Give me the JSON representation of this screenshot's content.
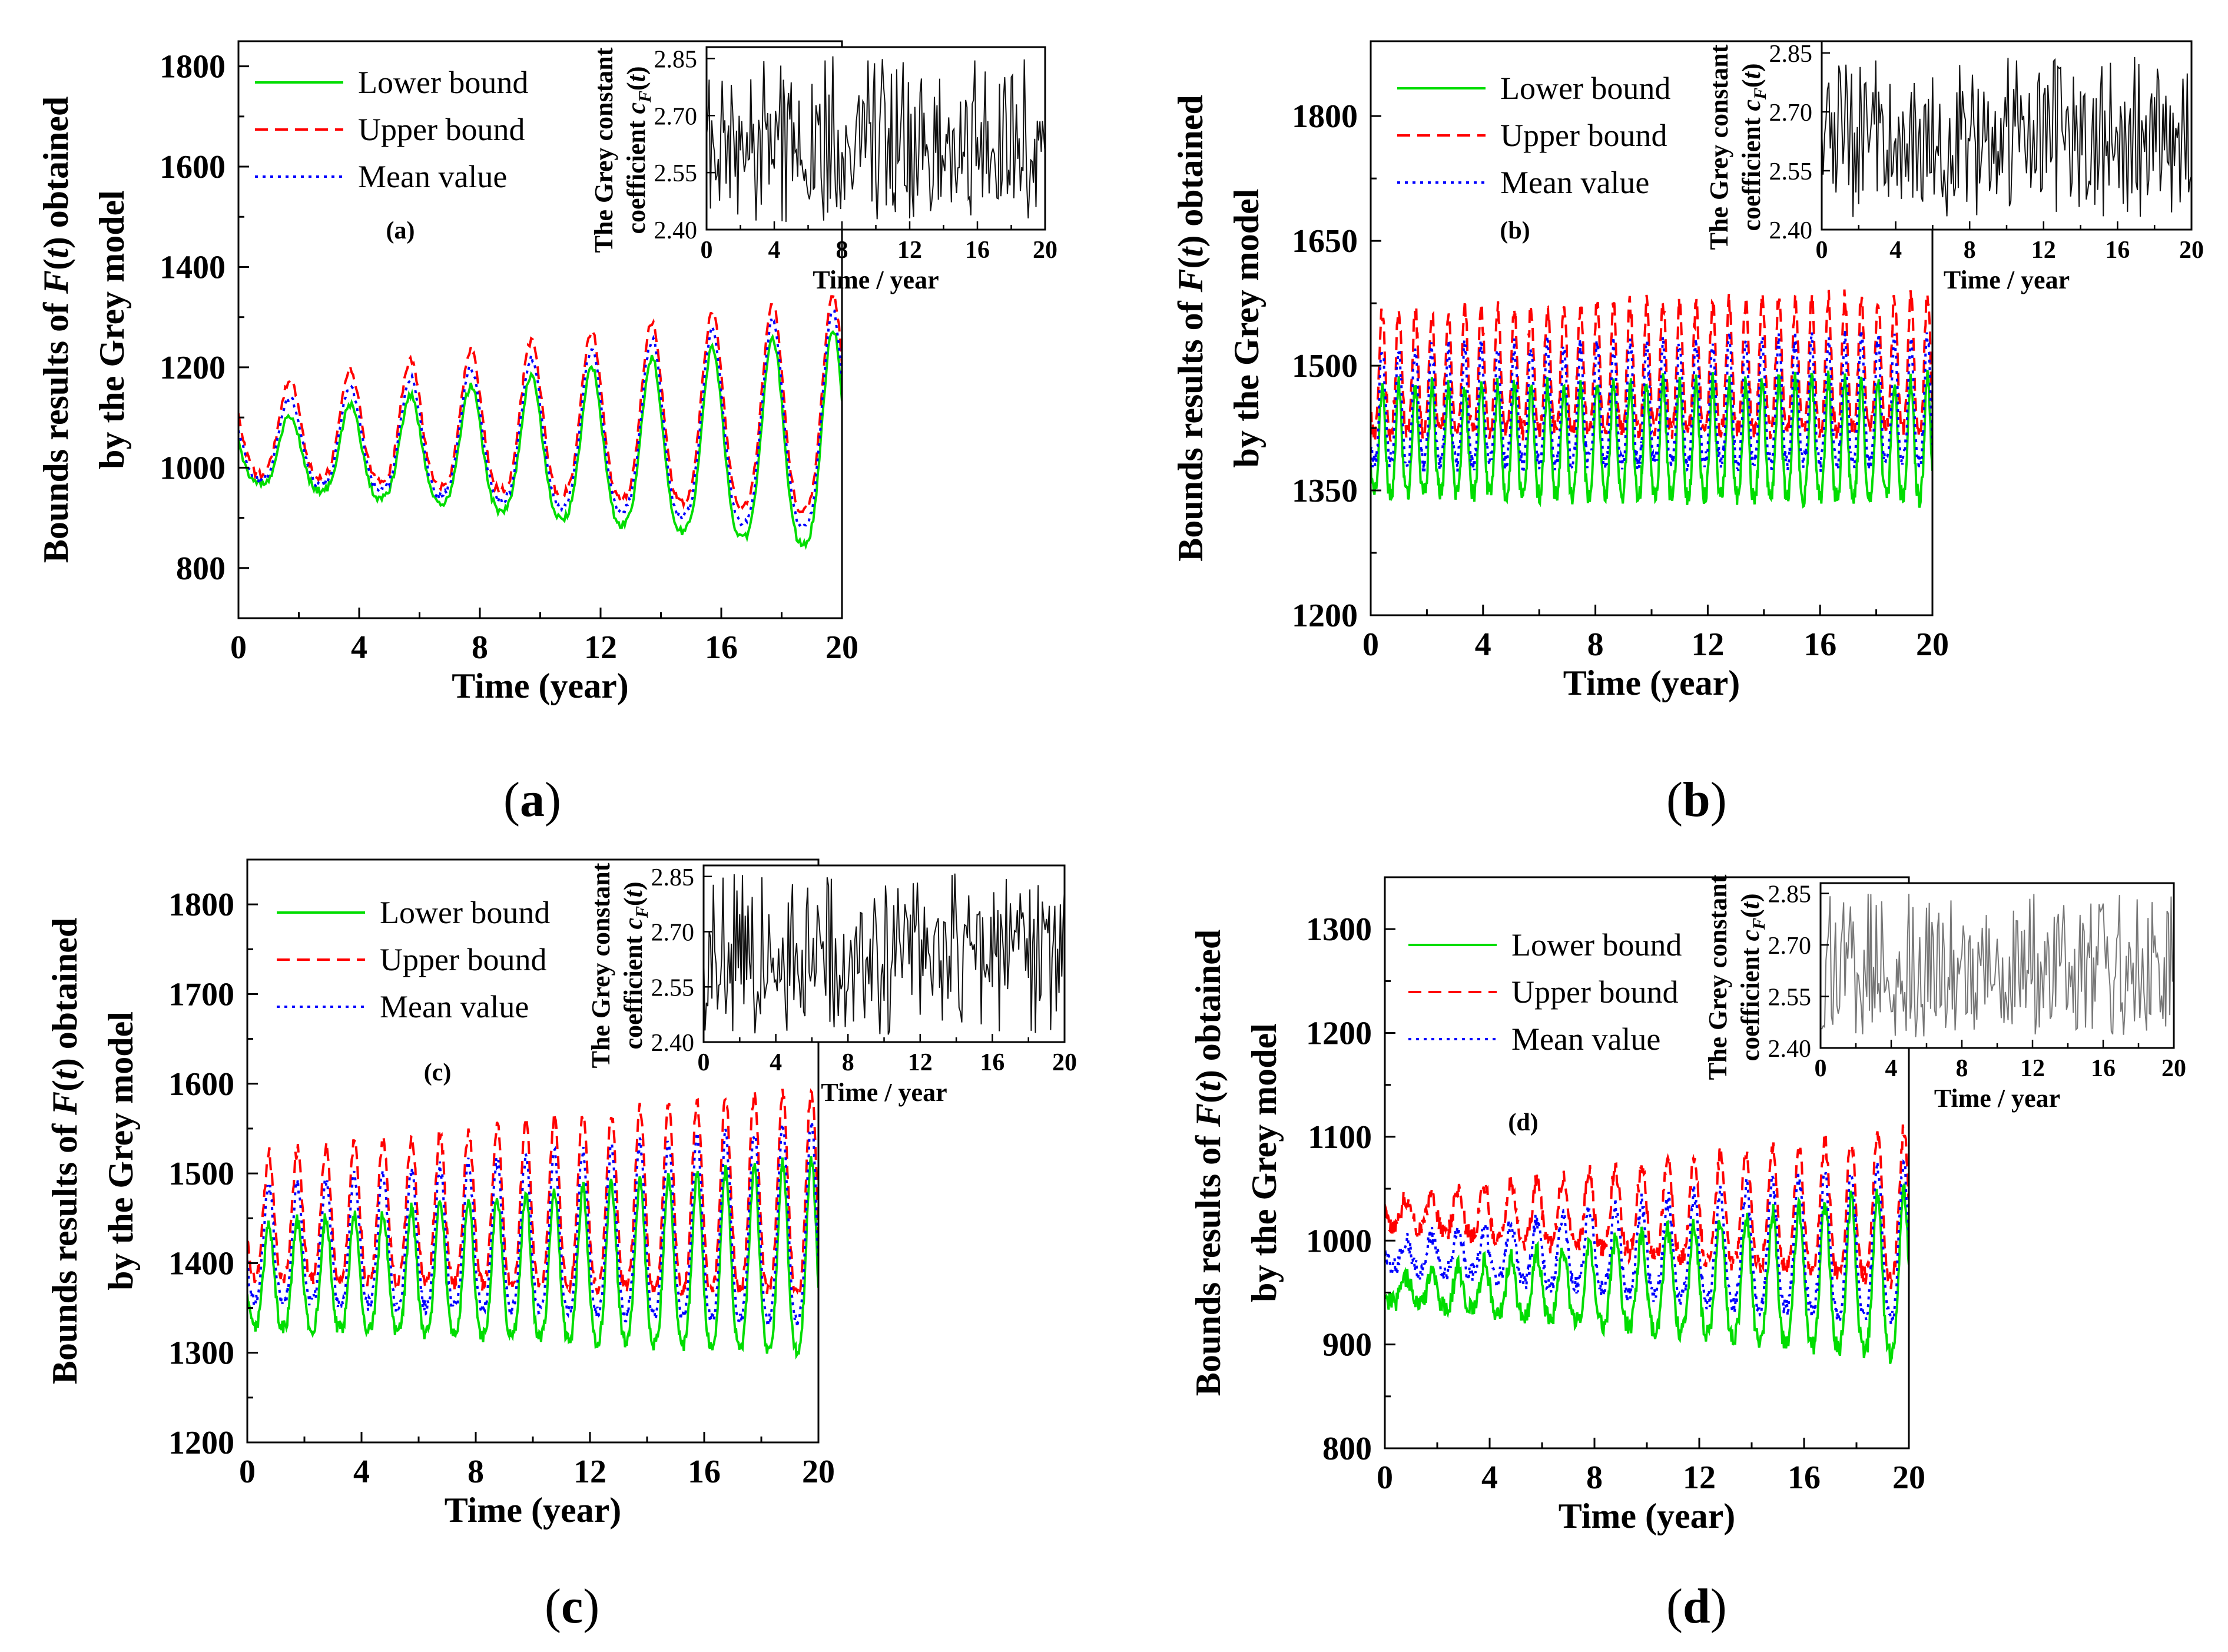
{
  "figure": {
    "captions": [
      {
        "open": "(",
        "letter": "a",
        "close": ")"
      },
      {
        "open": "(",
        "letter": "b",
        "close": ")"
      },
      {
        "open": "(",
        "letter": "c",
        "close": ")"
      },
      {
        "open": "(",
        "letter": "d",
        "close": ")"
      }
    ]
  },
  "chart_data": [
    {
      "type": "line",
      "panel": "a",
      "panel_label": "(a)",
      "xlabel": "Time (year)",
      "ylabel_line1_pre": "Bounds results of ",
      "ylabel_line1_F": "F",
      "ylabel_line1_paren_open": "(",
      "ylabel_line1_t": "t",
      "ylabel_line1_post": ") obtained",
      "ylabel_line2": "by the Grey model",
      "xlim": [
        0,
        20
      ],
      "ylim": [
        700,
        1850
      ],
      "xticks": [
        "0",
        "4",
        "8",
        "12",
        "16",
        "20"
      ],
      "yticks": [
        "800",
        "1000",
        "1200",
        "1400",
        "1600",
        "1800"
      ],
      "ytick_values": [
        800,
        1000,
        1200,
        1400,
        1600,
        1800
      ],
      "legend": [
        "Lower bound",
        "Upper bound",
        "Mean value"
      ],
      "legend_position": "top-left",
      "series_model": {
        "cycles_per_year": 0.5,
        "samples": 400,
        "lower": {
          "start_center": 1020,
          "end_center": 1020,
          "start_amp": 70,
          "end_amp": 260,
          "phase": 0.15,
          "noise": 8
        },
        "upper": {
          "start_center": 1060,
          "end_center": 1090,
          "start_amp": 100,
          "end_amp": 260,
          "phase": 0.15,
          "noise": 8
        },
        "mean": {
          "start_center": 1040,
          "end_center": 1055,
          "start_amp": 85,
          "end_amp": 260,
          "phase": 0.15,
          "noise": 8
        }
      },
      "inset": {
        "ylabel_line1": "The Grey constant",
        "ylabel_line2_pre": "coefficient ",
        "ylabel_line2_c": "c",
        "ylabel_line2_sub": "F",
        "ylabel_line2_paren_open": "(",
        "ylabel_line2_t": "t",
        "ylabel_line2_close": ")",
        "xlabel": "Time / year",
        "xlim": [
          0,
          20
        ],
        "ylim": [
          2.4,
          2.88
        ],
        "xticks": [
          "0",
          "4",
          "8",
          "12",
          "16",
          "20"
        ],
        "yticks": [
          "2.40",
          "2.55",
          "2.70",
          "2.85"
        ],
        "ytick_values": [
          2.4,
          2.55,
          2.7,
          2.85
        ],
        "samples": 260,
        "value_range": [
          2.42,
          2.86
        ],
        "seed": 11
      }
    },
    {
      "type": "line",
      "panel": "b",
      "panel_label": "(b)",
      "xlabel": "Time (year)",
      "ylabel_line1_pre": "Bounds results of ",
      "ylabel_line1_F": "F",
      "ylabel_line1_paren_open": "(",
      "ylabel_line1_t": "t",
      "ylabel_line1_post": ") obtained",
      "ylabel_line2": "by the Grey model",
      "xlim": [
        0,
        20
      ],
      "ylim": [
        1200,
        1890
      ],
      "xticks": [
        "0",
        "4",
        "8",
        "12",
        "16",
        "20"
      ],
      "yticks": [
        "1200",
        "1350",
        "1500",
        "1650",
        "1800"
      ],
      "ytick_values": [
        1200,
        1350,
        1500,
        1650,
        1800
      ],
      "legend": [
        "Lower bound",
        "Upper bound",
        "Mean value"
      ],
      "legend_position": "top-left",
      "series_model": {
        "cycles_per_year": 1.7,
        "samples": 900,
        "lower": {
          "start_center": 1400,
          "end_center": 1400,
          "start_amp": 75,
          "end_amp": 85,
          "phase": 0.3,
          "noise": 12
        },
        "upper": {
          "start_center": 1480,
          "end_center": 1490,
          "start_amp": 85,
          "end_amp": 95,
          "phase": 0.3,
          "noise": 12
        },
        "mean": {
          "start_center": 1440,
          "end_center": 1445,
          "start_amp": 80,
          "end_amp": 90,
          "phase": 0.3,
          "noise": 12
        }
      },
      "inset": {
        "ylabel_line1": "The Grey constant",
        "ylabel_line2_pre": "coefficient ",
        "ylabel_line2_c": "c",
        "ylabel_line2_sub": "F",
        "ylabel_line2_paren_open": "(",
        "ylabel_line2_t": "t",
        "ylabel_line2_close": ")",
        "xlabel": "Time / year",
        "xlim": [
          0,
          20
        ],
        "ylim": [
          2.4,
          2.88
        ],
        "xticks": [
          "0",
          "4",
          "8",
          "12",
          "16",
          "20"
        ],
        "yticks": [
          "2.40",
          "2.55",
          "2.70",
          "2.85"
        ],
        "ytick_values": [
          2.4,
          2.55,
          2.7,
          2.85
        ],
        "samples": 260,
        "value_range": [
          2.43,
          2.84
        ],
        "seed": 23
      }
    },
    {
      "type": "line",
      "panel": "c",
      "panel_label": "(c)",
      "xlabel": "Time (year)",
      "ylabel_line1_pre": "Bounds results of ",
      "ylabel_line1_F": "F",
      "ylabel_line1_paren_open": "(",
      "ylabel_line1_t": "t",
      "ylabel_line1_post": ") obtained",
      "ylabel_line2": "by the Grey model",
      "xlim": [
        0,
        20
      ],
      "ylim": [
        1200,
        1850
      ],
      "xticks": [
        "0",
        "4",
        "8",
        "12",
        "16",
        "20"
      ],
      "yticks": [
        "1200",
        "1300",
        "1400",
        "1500",
        "1600",
        "1700",
        "1800"
      ],
      "ytick_values": [
        1200,
        1300,
        1400,
        1500,
        1600,
        1700,
        1800
      ],
      "legend": [
        "Lower bound",
        "Upper bound",
        "Mean value"
      ],
      "legend_position": "top-left",
      "series_model": {
        "cycles_per_year": 1.0,
        "samples": 700,
        "lower": {
          "start_center": 1375,
          "end_center": 1390,
          "start_amp": 65,
          "end_amp": 125,
          "phase": 0.25,
          "noise": 8
        },
        "upper": {
          "start_center": 1440,
          "end_center": 1460,
          "start_amp": 80,
          "end_amp": 135,
          "phase": 0.25,
          "noise": 8
        },
        "mean": {
          "start_center": 1410,
          "end_center": 1425,
          "start_amp": 72,
          "end_amp": 130,
          "phase": 0.25,
          "noise": 8
        }
      },
      "inset": {
        "ylabel_line1": "The Grey constant",
        "ylabel_line2_pre": "coefficient ",
        "ylabel_line2_c": "c",
        "ylabel_line2_sub": "F",
        "ylabel_line2_paren_open": "(",
        "ylabel_line2_t": "t",
        "ylabel_line2_close": ")",
        "xlabel": "Time / year",
        "xlim": [
          0,
          20
        ],
        "ylim": [
          2.4,
          2.88
        ],
        "xticks": [
          "0",
          "4",
          "8",
          "12",
          "16",
          "20"
        ],
        "yticks": [
          "2.40",
          "2.55",
          "2.70",
          "2.85"
        ],
        "ytick_values": [
          2.4,
          2.55,
          2.7,
          2.85
        ],
        "samples": 260,
        "value_range": [
          2.42,
          2.86
        ],
        "seed": 37
      }
    },
    {
      "type": "line",
      "panel": "d",
      "panel_label": "(d)",
      "xlabel": "Time (year)",
      "ylabel_line1_pre": "Bounds results of ",
      "ylabel_line1_F": "F",
      "ylabel_line1_paren_open": "(",
      "ylabel_line1_t": "t",
      "ylabel_line1_post": ") obtained",
      "ylabel_line2": "by the Grey model",
      "xlim": [
        0,
        20
      ],
      "ylim": [
        800,
        1350
      ],
      "xticks": [
        "0",
        "4",
        "8",
        "12",
        "16",
        "20"
      ],
      "yticks": [
        "800",
        "900",
        "1000",
        "1100",
        "1200",
        "1300"
      ],
      "ytick_values": [
        800,
        900,
        1000,
        1100,
        1200,
        1300
      ],
      "legend": [
        "Lower bound",
        "Upper bound",
        "Mean value"
      ],
      "legend_position": "top-left",
      "series_model": {
        "cycles_per_year": 1.0,
        "samples": 700,
        "lower": {
          "start_center": 950,
          "end_center": 955,
          "start_amp": 12,
          "end_amp": 95,
          "phase": 0.2,
          "noise": 10
        },
        "upper": {
          "start_center": 1025,
          "end_center": 1020,
          "start_amp": 15,
          "end_amp": 85,
          "phase": 0.2,
          "noise": 10
        },
        "mean": {
          "start_center": 985,
          "end_center": 985,
          "start_amp": 13,
          "end_amp": 90,
          "phase": 0.2,
          "noise": 10
        }
      },
      "inset": {
        "ylabel_line1": "The Grey constant",
        "ylabel_line2_pre": "coefficient ",
        "ylabel_line2_c": "c",
        "ylabel_line2_sub": "F",
        "ylabel_line2_paren_open": "(",
        "ylabel_line2_t": "t",
        "ylabel_line2_close": ")",
        "xlabel": "Time / year",
        "xlim": [
          0,
          20
        ],
        "ylim": [
          2.4,
          2.88
        ],
        "xticks": [
          "0",
          "4",
          "8",
          "12",
          "16",
          "20"
        ],
        "yticks": [
          "2.40",
          "2.55",
          "2.70",
          "2.85"
        ],
        "ytick_values": [
          2.4,
          2.55,
          2.7,
          2.85
        ],
        "samples": 260,
        "value_range": [
          2.43,
          2.85
        ],
        "seed": 53
      }
    }
  ],
  "colors": {
    "lower": "#00dd00",
    "upper": "#ff0000",
    "mean": "#0000ff",
    "inset_line_dark": "#111111",
    "inset_line_light": "#777777",
    "axis": "#000000"
  }
}
